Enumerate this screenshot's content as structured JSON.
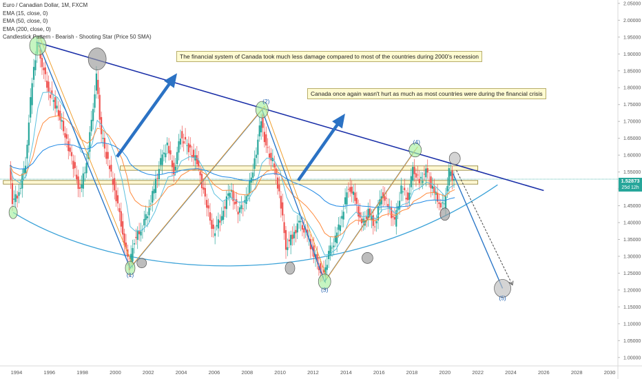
{
  "legend": {
    "title": "Euro / Canadian Dollar, 1M, FXCM",
    "ema15": "EMA (15, close, 0)",
    "ema50": "EMA (50, close, 0)",
    "ema200": "EMA (200, close, 0)",
    "pattern": "Candlestick Pattern - Bearish - Shooting Star (Price 50 SMA)"
  },
  "notes": {
    "recession": "The financial system of Canada took much less damage compared to most of the countries during 2000's recession",
    "crisis": "Canada once again wasn't hurt as much as most countries were during the financial crisis"
  },
  "price_tag": {
    "price": "1.52873",
    "countdown": "25d 12h"
  },
  "wave_labels": [
    "(1)",
    "(2)",
    "(3)",
    "(4)",
    "(5)"
  ],
  "colors": {
    "up_candle": "#26a69a",
    "down_candle": "#ef5350",
    "ema15": "#5bc0de",
    "ema50": "#ff8a3d",
    "ema200": "#1e88e5",
    "trendline": "#1a2fa8",
    "wave_line": "#2d78c8",
    "arc_line": "#3ba2d8",
    "price_line": "#26a69a",
    "zone_fill": "#fff6c8",
    "zone_stroke": "#8a7d2d"
  },
  "chart_data": {
    "type": "line",
    "symbol": "Euro / Canadian Dollar",
    "timeframe": "1M",
    "xlim": [
      1993.0,
      2030.5
    ],
    "ylim": [
      0.975,
      2.06
    ],
    "x_ticks": [
      "1994",
      "1996",
      "1998",
      "2000",
      "2002",
      "2004",
      "2006",
      "2008",
      "2010",
      "2012",
      "2014",
      "2016",
      "2018",
      "2020",
      "2022",
      "2024",
      "2026",
      "2028",
      "2030"
    ],
    "y_ticks": [
      "2.05000",
      "2.00000",
      "1.95000",
      "1.90000",
      "1.85000",
      "1.80000",
      "1.75000",
      "1.70000",
      "1.65000",
      "1.60000",
      "1.55000",
      "1.50000",
      "1.45000",
      "1.40000",
      "1.35000",
      "1.30000",
      "1.25000",
      "1.20000",
      "1.15000",
      "1.10000",
      "1.05000",
      "1.00000"
    ],
    "last_price": 1.52873,
    "price_path": [
      [
        1993.6,
        1.57
      ],
      [
        1993.8,
        1.46
      ],
      [
        1994.2,
        1.49
      ],
      [
        1994.6,
        1.58
      ],
      [
        1995.0,
        1.82
      ],
      [
        1995.3,
        1.93
      ],
      [
        1995.6,
        1.87
      ],
      [
        1996.0,
        1.79
      ],
      [
        1996.5,
        1.74
      ],
      [
        1997.0,
        1.66
      ],
      [
        1997.5,
        1.57
      ],
      [
        1997.9,
        1.49
      ],
      [
        1998.3,
        1.58
      ],
      [
        1998.6,
        1.7
      ],
      [
        1998.9,
        1.83
      ],
      [
        1999.2,
        1.66
      ],
      [
        1999.6,
        1.58
      ],
      [
        2000.0,
        1.5
      ],
      [
        2000.4,
        1.4
      ],
      [
        2000.7,
        1.31
      ],
      [
        2000.9,
        1.27
      ],
      [
        2001.2,
        1.35
      ],
      [
        2001.6,
        1.38
      ],
      [
        2002.0,
        1.43
      ],
      [
        2002.4,
        1.5
      ],
      [
        2002.8,
        1.58
      ],
      [
        2003.2,
        1.63
      ],
      [
        2003.6,
        1.55
      ],
      [
        2004.0,
        1.66
      ],
      [
        2004.5,
        1.62
      ],
      [
        2005.0,
        1.58
      ],
      [
        2005.5,
        1.47
      ],
      [
        2006.0,
        1.37
      ],
      [
        2006.5,
        1.42
      ],
      [
        2007.0,
        1.5
      ],
      [
        2007.5,
        1.43
      ],
      [
        2008.0,
        1.47
      ],
      [
        2008.5,
        1.58
      ],
      [
        2008.9,
        1.71
      ],
      [
        2009.2,
        1.62
      ],
      [
        2009.6,
        1.58
      ],
      [
        2010.0,
        1.49
      ],
      [
        2010.4,
        1.33
      ],
      [
        2010.8,
        1.36
      ],
      [
        2011.2,
        1.4
      ],
      [
        2011.6,
        1.37
      ],
      [
        2012.0,
        1.32
      ],
      [
        2012.4,
        1.27
      ],
      [
        2012.7,
        1.24
      ],
      [
        2013.0,
        1.31
      ],
      [
        2013.4,
        1.35
      ],
      [
        2013.8,
        1.42
      ],
      [
        2014.2,
        1.51
      ],
      [
        2014.6,
        1.47
      ],
      [
        2015.0,
        1.39
      ],
      [
        2015.4,
        1.43
      ],
      [
        2015.8,
        1.39
      ],
      [
        2016.2,
        1.49
      ],
      [
        2016.6,
        1.45
      ],
      [
        2017.0,
        1.4
      ],
      [
        2017.4,
        1.5
      ],
      [
        2017.8,
        1.47
      ],
      [
        2018.1,
        1.56
      ],
      [
        2018.5,
        1.52
      ],
      [
        2018.9,
        1.55
      ],
      [
        2019.3,
        1.5
      ],
      [
        2019.7,
        1.46
      ],
      [
        2020.0,
        1.45
      ],
      [
        2020.3,
        1.55
      ],
      [
        2020.6,
        1.52873
      ]
    ],
    "annotations": {
      "descending_trendline": [
        [
          1995.2,
          1.935
        ],
        [
          2026.0,
          1.495
        ]
      ],
      "zone_upper": {
        "x": [
          2000.3,
          2022.0
        ],
        "y": [
          1.555,
          1.568
        ]
      },
      "zone_lower": {
        "x": [
          1993.2,
          2022.0
        ],
        "y": [
          1.514,
          1.525
        ]
      },
      "projected_wave_5": [
        [
          2020.5,
          1.545
        ],
        [
          2023.5,
          1.205
        ]
      ],
      "projected_arrow": [
        [
          2020.7,
          1.555
        ],
        [
          2024.1,
          1.215
        ]
      ],
      "waves": [
        {
          "label": "(1)",
          "x": 2000.9,
          "y": 1.265
        },
        {
          "label": "(2)",
          "x": 2008.9,
          "y": 1.735
        },
        {
          "label": "(3)",
          "x": 2012.7,
          "y": 1.225
        },
        {
          "label": "(4)",
          "x": 2018.2,
          "y": 1.615
        },
        {
          "label": "(5)",
          "x": 2023.5,
          "y": 1.205
        }
      ]
    }
  }
}
